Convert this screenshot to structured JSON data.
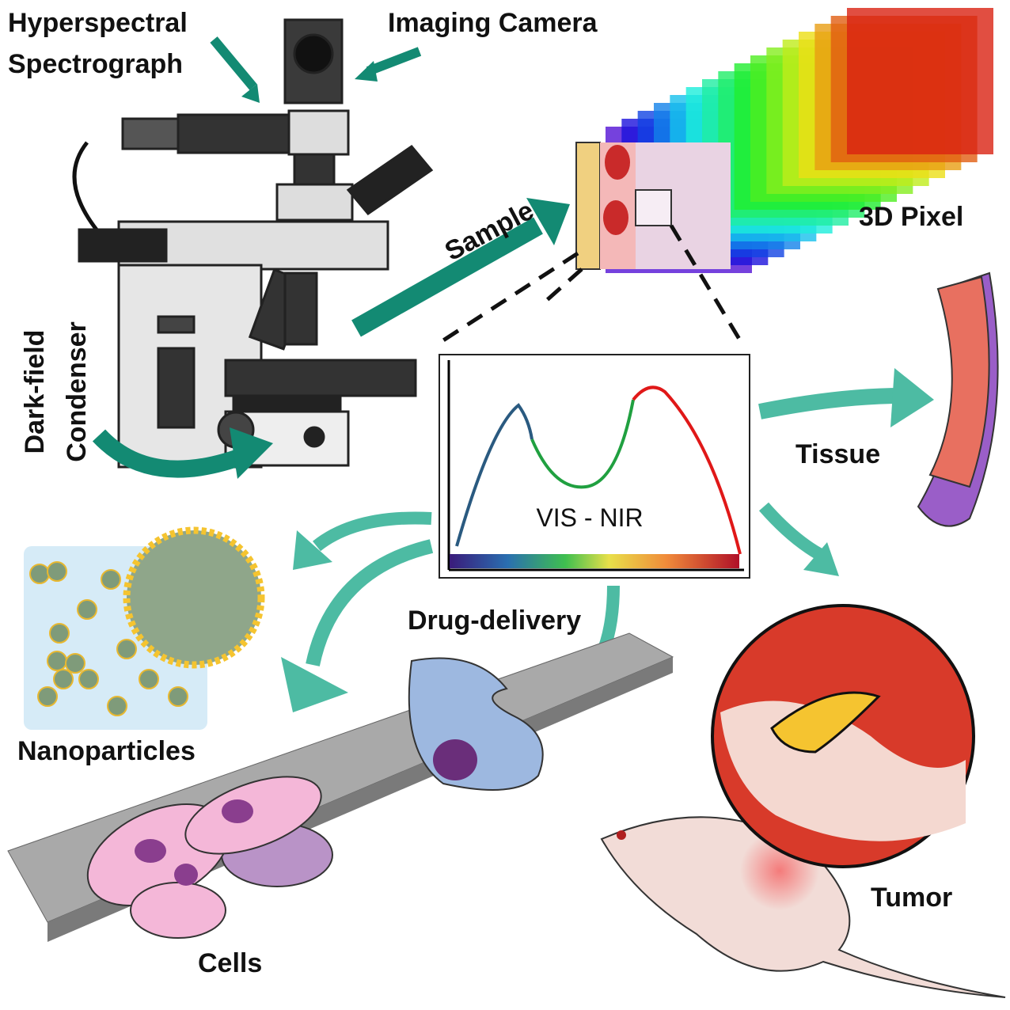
{
  "labels": {
    "hyperspectral_spectrograph": [
      "Hyperspectral",
      "Spectrograph"
    ],
    "imaging_camera": "Imaging Camera",
    "sample": "Sample",
    "pixel_3d": "3D Pixel",
    "dark_field_condenser": [
      "Dark-field",
      "Condenser"
    ],
    "spectrum": "VIS - NIR",
    "tissue": "Tissue",
    "drug_delivery": "Drug-delivery",
    "nanoparticles": "Nanoparticles",
    "tumor": "Tumor",
    "cells": "Cells"
  }
}
